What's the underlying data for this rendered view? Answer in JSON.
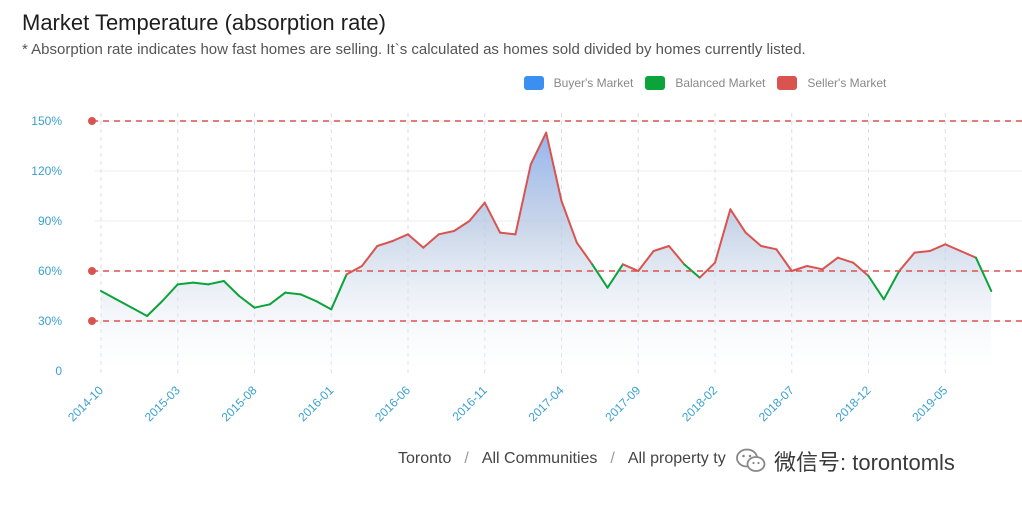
{
  "header": {
    "title": "Market Temperature (absorption rate)",
    "subtitle": "* Absorption rate indicates how fast homes are selling. It`s calculated as homes sold divided by homes currently listed."
  },
  "legend": {
    "items": [
      {
        "label": "Buyer's Market",
        "color": "#3b8ff0"
      },
      {
        "label": "Balanced Market",
        "color": "#0aa43a"
      },
      {
        "label": "Seller's Market",
        "color": "#d9534f"
      }
    ]
  },
  "breadcrumb": {
    "city": "Toronto",
    "community": "All Communities",
    "property": "All property ty",
    "sep": "/"
  },
  "watermark": {
    "text": "微信号: torontomls"
  },
  "chart_data": {
    "type": "area",
    "title": "Market Temperature (absorption rate)",
    "xlabel": "",
    "ylabel": "",
    "ylim": [
      0,
      150
    ],
    "y_ticks": [
      "0",
      "30%",
      "60%",
      "90%",
      "120%",
      "150%"
    ],
    "y_tick_values": [
      0,
      30,
      60,
      90,
      120,
      150
    ],
    "x_tick_labels": [
      "2014-10",
      "2015-03",
      "2015-08",
      "2016-01",
      "2016-06",
      "2016-11",
      "2017-04",
      "2017-09",
      "2018-02",
      "2018-07",
      "2018-12",
      "2019-05"
    ],
    "x_tick_indices": [
      0,
      5,
      10,
      15,
      20,
      25,
      30,
      35,
      40,
      45,
      50,
      55
    ],
    "thresholds": [
      30,
      60,
      150
    ],
    "threshold_color": "#d9534f",
    "colors": {
      "buyer": "#3b8ff0",
      "balanced": "#0aa43a",
      "seller": "#d9534f"
    },
    "values": [
      48,
      43,
      38,
      33,
      42,
      52,
      53,
      52,
      54,
      45,
      38,
      40,
      47,
      46,
      42,
      37,
      58,
      63,
      75,
      78,
      82,
      74,
      82,
      84,
      90,
      101,
      83,
      82,
      124,
      143,
      102,
      77,
      64,
      50,
      64,
      60,
      72,
      75,
      64,
      56,
      65,
      97,
      83,
      75,
      73,
      60,
      63,
      61,
      68,
      65,
      57,
      43,
      60,
      71,
      72,
      76,
      72,
      68,
      48
    ]
  }
}
